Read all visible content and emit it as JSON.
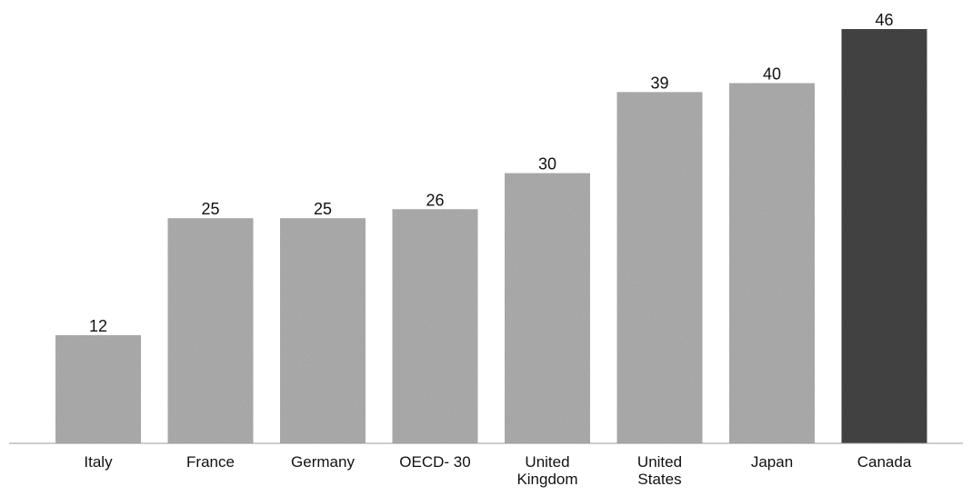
{
  "chart_data": {
    "type": "bar",
    "categories": [
      "Italy",
      "France",
      "Germany",
      "OECD- 30",
      "United Kingdom",
      "United States",
      "Japan",
      "Canada"
    ],
    "category_lines": [
      [
        "Italy"
      ],
      [
        "France"
      ],
      [
        "Germany"
      ],
      [
        "OECD- 30"
      ],
      [
        "United",
        "Kingdom"
      ],
      [
        "United",
        "States"
      ],
      [
        "Japan"
      ],
      [
        "Canada"
      ]
    ],
    "values": [
      12,
      25,
      25,
      26,
      30,
      39,
      40,
      46
    ],
    "data_labels": [
      "12",
      "25",
      "25",
      "26",
      "30",
      "39",
      "40",
      "46"
    ],
    "ylim": [
      0,
      46
    ],
    "grid": false,
    "title": "",
    "xlabel": "",
    "ylabel": ""
  },
  "colors": {
    "bar": "#aeaeae",
    "bar_highlight": "#444444",
    "baseline": "#9a9a9a"
  },
  "highlight_category": "Canada"
}
